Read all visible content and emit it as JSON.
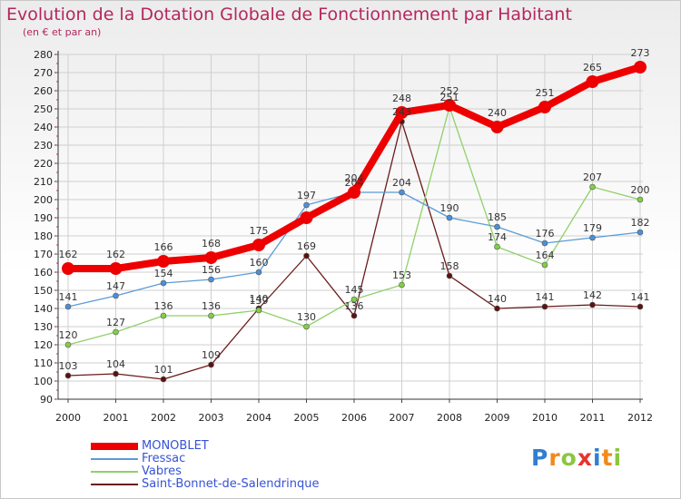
{
  "chart_data": {
    "type": "line",
    "title": "Evolution de la Dotation Globale de Fonctionnement par Habitant",
    "subtitle": "(en € et par an)",
    "xlabel": "",
    "ylabel": "",
    "x": [
      "2000",
      "2001",
      "2002",
      "2003",
      "2004",
      "2005",
      "2006",
      "2007",
      "2008",
      "2009",
      "2010",
      "2011",
      "2012"
    ],
    "ylim": [
      90,
      280
    ],
    "yticks": [
      "90",
      "100",
      "110",
      "120",
      "130",
      "140",
      "150",
      "160",
      "170",
      "180",
      "190",
      "200",
      "210",
      "220",
      "230",
      "240",
      "250",
      "260",
      "270",
      "280"
    ],
    "grid": true,
    "legend_position": "bottom-left",
    "series": [
      {
        "name": "MONOBLET",
        "color": "#ee0000",
        "values": [
          162,
          162,
          166,
          168,
          175,
          190,
          204,
          248,
          252,
          240,
          251,
          265,
          273
        ],
        "labels": [
          "162",
          "162",
          "166",
          "168",
          "175",
          "",
          "204",
          "248",
          "252",
          "240",
          "251",
          "265",
          "273"
        ]
      },
      {
        "name": "Fressac",
        "color": "#5b9bd5",
        "values": [
          141,
          147,
          154,
          156,
          160,
          197,
          204,
          204,
          190,
          185,
          176,
          179,
          182
        ],
        "labels": [
          "141",
          "147",
          "154",
          "156",
          "160",
          "197",
          "204",
          "204",
          "190",
          "185",
          "176",
          "179",
          "182"
        ]
      },
      {
        "name": "Vabres",
        "color": "#8fd16a",
        "values": [
          120,
          127,
          136,
          136,
          139,
          130,
          145,
          153,
          251,
          174,
          164,
          207,
          200
        ],
        "labels": [
          "120",
          "127",
          "136",
          "136",
          "139",
          "130",
          "145",
          "153",
          "251",
          "174",
          "164",
          "207",
          "200"
        ]
      },
      {
        "name": "Saint-Bonnet-de-Salendrinque",
        "color": "#6b1a1a",
        "values": [
          103,
          104,
          101,
          109,
          140,
          169,
          136,
          243,
          158,
          140,
          141,
          142,
          141
        ],
        "labels": [
          "103",
          "104",
          "101",
          "109",
          "140",
          "169",
          "136",
          "243",
          "158",
          "140",
          "141",
          "142",
          "141"
        ]
      }
    ]
  },
  "logo": {
    "letters": [
      "P",
      "r",
      "o",
      "x",
      "i",
      "t",
      "i"
    ]
  }
}
